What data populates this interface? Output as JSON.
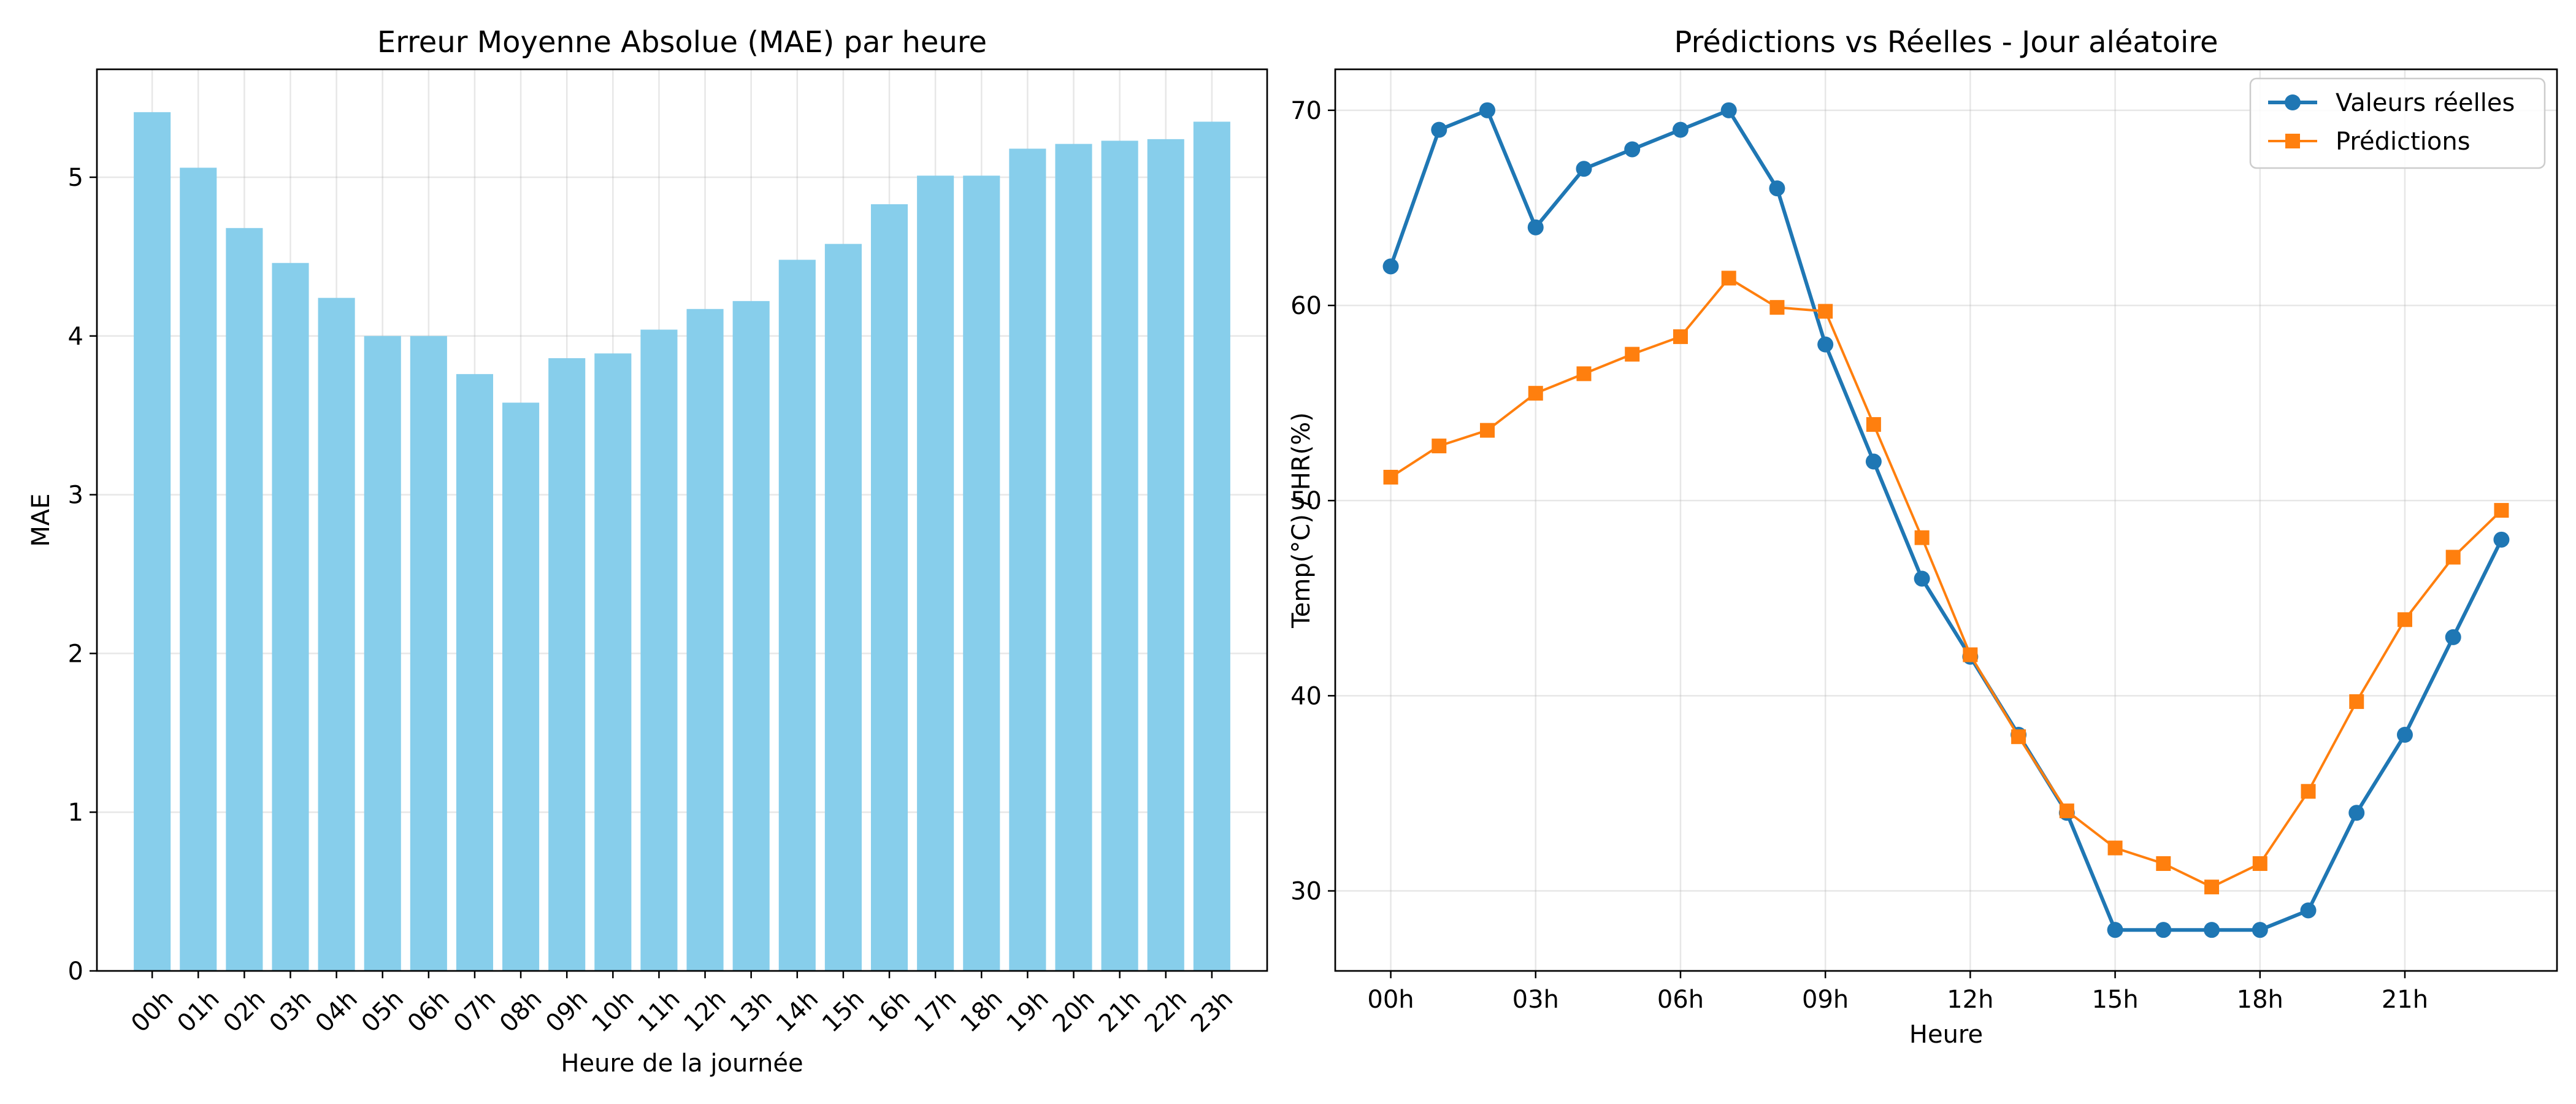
{
  "chart_data": [
    {
      "type": "bar",
      "title": "Erreur Moyenne Absolue (MAE) par heure",
      "xlabel": "Heure de la journée",
      "ylabel": "MAE",
      "categories": [
        "00h",
        "01h",
        "02h",
        "03h",
        "04h",
        "05h",
        "06h",
        "07h",
        "08h",
        "09h",
        "10h",
        "11h",
        "12h",
        "13h",
        "14h",
        "15h",
        "16h",
        "17h",
        "18h",
        "19h",
        "20h",
        "21h",
        "22h",
        "23h"
      ],
      "values": [
        5.41,
        5.06,
        4.68,
        4.46,
        4.24,
        4.0,
        4.0,
        3.76,
        3.58,
        3.86,
        3.89,
        4.04,
        4.17,
        4.22,
        4.48,
        4.58,
        4.83,
        5.01,
        5.01,
        5.18,
        5.21,
        5.23,
        5.24,
        5.35
      ],
      "ylim": [
        0,
        5.68
      ],
      "yticks": [
        0,
        1,
        2,
        3,
        4,
        5
      ],
      "color": "#87CEEB",
      "grid": true
    },
    {
      "type": "line",
      "title": "Prédictions vs Réelles - Jour aléatoire",
      "xlabel": "Heure",
      "ylabel": "Temp(°C) / HR(%)",
      "x": [
        0,
        1,
        2,
        3,
        4,
        5,
        6,
        7,
        8,
        9,
        10,
        11,
        12,
        13,
        14,
        15,
        16,
        17,
        18,
        19,
        20,
        21,
        22,
        23
      ],
      "xticks": [
        0,
        3,
        6,
        9,
        12,
        15,
        18,
        21
      ],
      "xticklabels": [
        "00h",
        "03h",
        "06h",
        "09h",
        "12h",
        "15h",
        "18h",
        "21h"
      ],
      "xlim": [
        -1.15,
        24.15
      ],
      "ylim": [
        25.9,
        72.1
      ],
      "yticks": [
        30,
        40,
        50,
        60,
        70
      ],
      "grid": true,
      "legend_position": "top-right",
      "series": [
        {
          "name": "Valeurs réelles",
          "color": "#1f77b4",
          "marker": "circle",
          "values": [
            62,
            69,
            70,
            64,
            67,
            68,
            69,
            70,
            66,
            58,
            52,
            46,
            42,
            38,
            34,
            28,
            28,
            28,
            28,
            29,
            34,
            38,
            43,
            48
          ]
        },
        {
          "name": "Prédictions",
          "color": "#ff7f0e",
          "marker": "square",
          "values": [
            51.2,
            52.8,
            53.6,
            55.5,
            56.5,
            57.5,
            58.4,
            61.4,
            59.9,
            59.7,
            53.9,
            48.1,
            42.1,
            37.9,
            34.1,
            32.2,
            31.4,
            30.2,
            31.4,
            35.1,
            39.7,
            43.9,
            47.1,
            49.5
          ]
        }
      ]
    }
  ]
}
